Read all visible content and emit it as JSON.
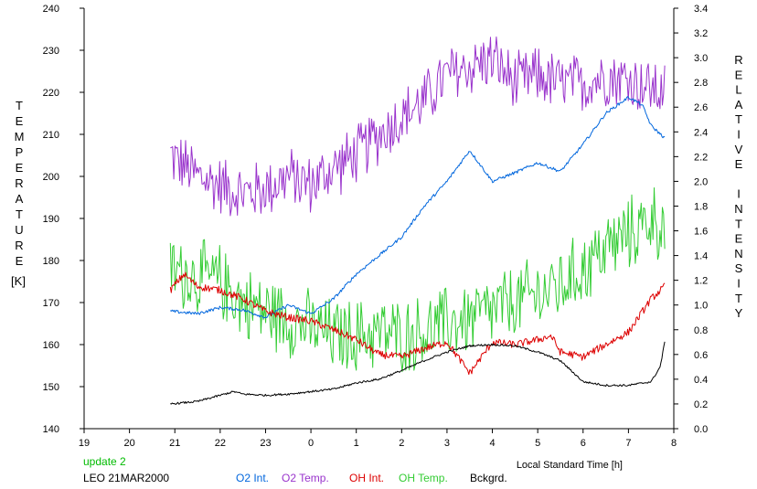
{
  "colors": {
    "background": "#ffffff",
    "axis": "#000000",
    "o2_int": "#0066dd",
    "o2_temp": "#9933cc",
    "oh_int": "#dd0000",
    "oh_temp": "#33cc33",
    "bckgrd": "#000000",
    "update": "#00bb00"
  },
  "labels": {
    "left_axis": "TEMPERATURE",
    "left_unit": "[K]",
    "right_axis": "RELATIVE INTENSITY",
    "x_axis": "Local Standard Time [h]",
    "update": "update 2",
    "station": "LEO 21MAR2000"
  },
  "chart_data": {
    "type": "line",
    "xlabel": "Local Standard Time [h]",
    "ylabel": "TEMPERATURE [K]",
    "y2label": "RELATIVE INTENSITY",
    "xlim": [
      19,
      32
    ],
    "ylim": [
      140,
      240
    ],
    "y2lim": [
      0.0,
      3.4
    ],
    "x_ticks": [
      19,
      20,
      21,
      22,
      23,
      24,
      25,
      26,
      27,
      28,
      29,
      30,
      31,
      32
    ],
    "x_tick_labels": [
      "19",
      "20",
      "21",
      "22",
      "23",
      "0",
      "1",
      "2",
      "3",
      "4",
      "5",
      "6",
      "7",
      "8"
    ],
    "y_ticks": [
      140,
      150,
      160,
      170,
      180,
      190,
      200,
      210,
      220,
      230,
      240
    ],
    "y2_ticks": [
      "0.0",
      "0.2",
      "0.4",
      "0.6",
      "0.8",
      "1.0",
      "1.2",
      "1.4",
      "1.6",
      "1.8",
      "2.0",
      "2.2",
      "2.4",
      "2.6",
      "2.8",
      "3.0",
      "3.2",
      "3.4"
    ],
    "grid": false,
    "legend": "bottom",
    "series": [
      {
        "name": "O2 Int.",
        "axis": "right",
        "style": "smooth",
        "x": [
          20.9,
          21.5,
          22.0,
          22.5,
          23.0,
          23.5,
          24.0,
          24.5,
          25.0,
          25.5,
          26.0,
          26.5,
          27.0,
          27.5,
          28.0,
          28.5,
          29.0,
          29.5,
          30.0,
          30.5,
          31.0,
          31.3,
          31.5,
          31.8
        ],
        "y": [
          0.95,
          0.93,
          0.98,
          0.96,
          0.9,
          1.0,
          0.93,
          1.05,
          1.25,
          1.4,
          1.55,
          1.8,
          2.0,
          2.25,
          2.0,
          2.07,
          2.15,
          2.08,
          2.3,
          2.55,
          2.68,
          2.62,
          2.45,
          2.35
        ]
      },
      {
        "name": "O2 Temp.",
        "axis": "left",
        "style": "noisy",
        "noise": 8,
        "x": [
          20.9,
          21.5,
          22.0,
          22.5,
          23.0,
          23.5,
          24.0,
          24.5,
          25.0,
          25.5,
          26.0,
          26.5,
          27.0,
          27.5,
          28.0,
          28.5,
          29.0,
          29.5,
          30.0,
          30.5,
          31.0,
          31.5,
          31.8
        ],
        "y": [
          205,
          200,
          198,
          196,
          197,
          200,
          198,
          202,
          205,
          210,
          214,
          218,
          224,
          226,
          228,
          222,
          224,
          222,
          222,
          224,
          223,
          221,
          220
        ]
      },
      {
        "name": "OH Int.",
        "axis": "right",
        "style": "jagged",
        "noise": 0.03,
        "x": [
          20.9,
          21.2,
          21.5,
          22.0,
          22.5,
          23.0,
          23.5,
          24.0,
          24.5,
          25.0,
          25.5,
          26.0,
          26.5,
          27.0,
          27.5,
          28.0,
          28.5,
          29.0,
          29.3,
          29.5,
          30.0,
          30.5,
          31.0,
          31.5,
          31.8
        ],
        "y": [
          1.12,
          1.25,
          1.15,
          1.12,
          1.05,
          0.95,
          0.9,
          0.87,
          0.8,
          0.72,
          0.6,
          0.58,
          0.65,
          0.7,
          0.45,
          0.7,
          0.68,
          0.72,
          0.75,
          0.62,
          0.58,
          0.68,
          0.78,
          1.05,
          1.15
        ]
      },
      {
        "name": "OH Temp.",
        "axis": "left",
        "style": "noisy",
        "noise": 10,
        "x": [
          20.9,
          21.5,
          22.0,
          22.5,
          23.0,
          23.5,
          24.0,
          24.5,
          25.0,
          25.5,
          26.0,
          26.5,
          27.0,
          27.5,
          28.0,
          28.5,
          29.0,
          29.5,
          30.0,
          30.5,
          31.0,
          31.5,
          31.8
        ],
        "y": [
          178,
          176,
          175,
          170,
          168,
          166,
          164,
          162,
          162,
          163,
          162,
          163,
          165,
          166,
          168,
          170,
          172,
          174,
          178,
          183,
          186,
          190,
          188
        ]
      },
      {
        "name": "Bckgrd.",
        "axis": "right",
        "style": "jagged",
        "noise": 0.008,
        "x": [
          20.9,
          21.5,
          22.0,
          22.3,
          22.5,
          23.0,
          23.5,
          24.0,
          24.5,
          25.0,
          25.5,
          26.0,
          26.5,
          27.0,
          27.5,
          28.0,
          28.5,
          29.0,
          29.5,
          30.0,
          30.5,
          31.0,
          31.5,
          31.7,
          31.8
        ],
        "y": [
          0.2,
          0.22,
          0.27,
          0.3,
          0.28,
          0.27,
          0.28,
          0.3,
          0.32,
          0.37,
          0.4,
          0.47,
          0.55,
          0.62,
          0.67,
          0.68,
          0.67,
          0.62,
          0.55,
          0.38,
          0.35,
          0.35,
          0.38,
          0.5,
          0.7
        ]
      }
    ]
  }
}
